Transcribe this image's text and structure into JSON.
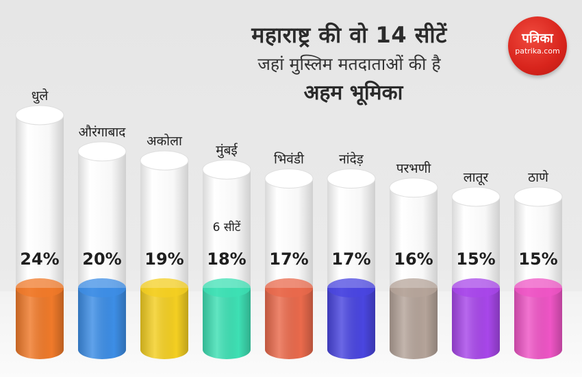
{
  "title": {
    "line1": "महाराष्ट्र की वो 14 सीटें",
    "line2": "जहां मुस्लिम मतदाताओं की है",
    "line3": "अहम भूमिका"
  },
  "logo": {
    "name": "पत्रिका",
    "url": "patrika.com"
  },
  "chart_data": {
    "type": "bar",
    "title": "महाराष्ट्र की वो 14 सीटें जहां मुस्लिम मतदाताओं की है अहम भूमिका",
    "categories": [
      "धुले",
      "औरंगाबाद",
      "अकोला",
      "मुंबई",
      "भिवंडी",
      "नांदेड़",
      "परभणी",
      "लातूर",
      "ठाणे"
    ],
    "values": [
      24,
      20,
      19,
      18,
      17,
      17,
      16,
      15,
      15
    ],
    "value_labels": [
      "24%",
      "20%",
      "19%",
      "18%",
      "17%",
      "17%",
      "16%",
      "15%",
      "15%"
    ],
    "unit": "%",
    "annotations": [
      {
        "category": "मुंबई",
        "text": "6 सीटें"
      }
    ],
    "colors": [
      "#f07a2a",
      "#3d8ee6",
      "#f4cf22",
      "#3ee0b4",
      "#ea6a4c",
      "#4a46e0",
      "#b5a49a",
      "#a847ea",
      "#ef55c6"
    ],
    "cylinder_color": "#ffffff"
  }
}
